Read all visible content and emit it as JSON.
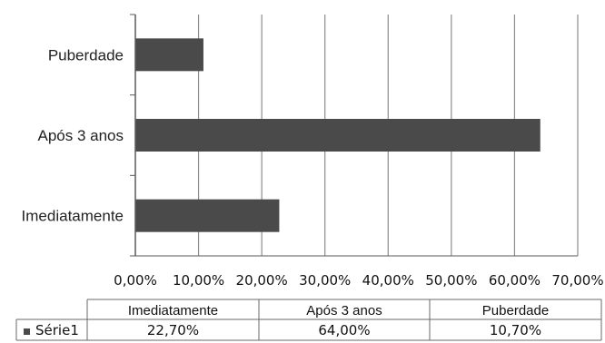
{
  "chart_data": {
    "type": "bar",
    "orientation": "horizontal",
    "categories": [
      "Imediatamente",
      "Após 3 anos",
      "Puberdade"
    ],
    "series": [
      {
        "name": "Série1",
        "values": [
          22.7,
          64.0,
          10.7
        ]
      }
    ],
    "xlim": [
      0,
      70
    ],
    "xticks": [
      0,
      10,
      20,
      30,
      40,
      50,
      60,
      70
    ],
    "xtick_labels": [
      "0,00%",
      "10,00%",
      "20,00%",
      "30,00%",
      "40,00%",
      "50,00%",
      "60,00%",
      "70,00%"
    ],
    "grid": true,
    "data_table": {
      "header": [
        "Imediatamente",
        "Após 3 anos",
        "Puberdade"
      ],
      "rows": [
        {
          "legend": "Série1",
          "cells": [
            "22,70%",
            "64,00%",
            "10,70%"
          ]
        }
      ]
    }
  },
  "colors": {
    "bar": "#4a4a4a",
    "grid": "#8c8c8c",
    "axis": "#5a5a5a",
    "text": "#222222"
  }
}
